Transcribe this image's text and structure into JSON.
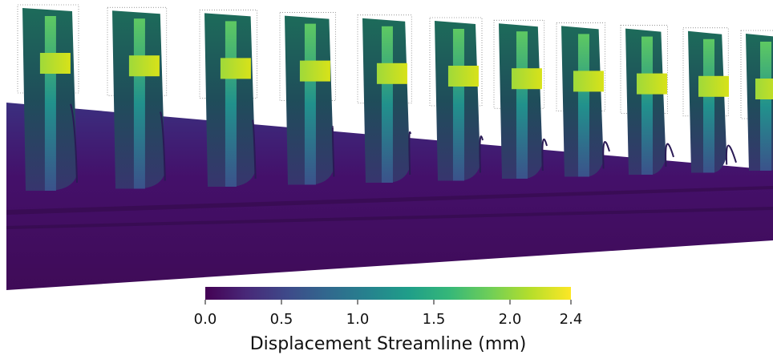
{
  "colorbar": {
    "title": "Displacement Streamline (mm)",
    "range": [
      0,
      2.4
    ],
    "ticks": [
      {
        "value": 0,
        "label": "0.0"
      },
      {
        "value": 0.5,
        "label": "0.5"
      },
      {
        "value": 1,
        "label": "1.0"
      },
      {
        "value": 1.5,
        "label": "1.5"
      },
      {
        "value": 2,
        "label": "2.0"
      },
      2.4
    ],
    "colors": [
      "#440154",
      "#482878",
      "#3e4989",
      "#31688e",
      "#26828e",
      "#1f9e89",
      "#35b779",
      "#6ece58",
      "#b5de2b",
      "#fde725"
    ]
  }
}
